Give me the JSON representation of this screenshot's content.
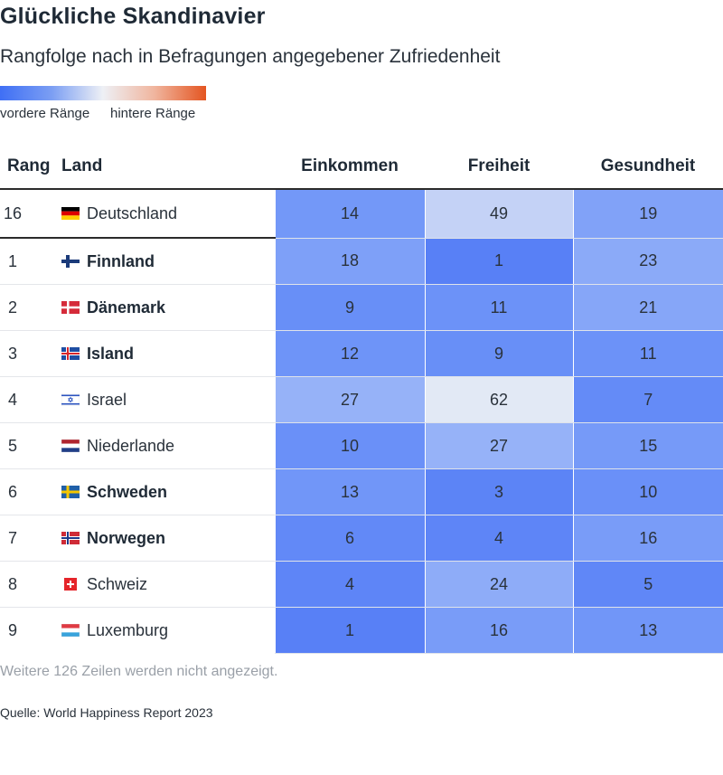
{
  "title": "Glückliche Skandinavier",
  "subtitle": "Rangfolge nach in Befragungen angegebener Zufriedenheit",
  "legend": {
    "low": "vordere Ränge",
    "high": "hintere Ränge",
    "colors": [
      "#3f6ff5",
      "#7b9ef3",
      "#eef0f5",
      "#f0b59e",
      "#e45521"
    ]
  },
  "note": "Weitere 126 Zeilen werden nicht angezeigt.",
  "source": "Quelle: World Happiness Report 2023",
  "chart_data": {
    "type": "table",
    "columns": [
      "Rang",
      "Land",
      "Einkommen",
      "Freiheit",
      "Gesundheit"
    ],
    "rows": [
      {
        "rank": "16",
        "country": "Deutschland",
        "flag": "de-flag",
        "bold": false,
        "values": [
          14,
          49,
          19
        ]
      },
      {
        "rank": "1",
        "country": "Finnland",
        "flag": "fi-flag",
        "bold": true,
        "values": [
          18,
          1,
          23
        ]
      },
      {
        "rank": "2",
        "country": "Dänemark",
        "flag": "dk-flag",
        "bold": true,
        "values": [
          9,
          11,
          21
        ]
      },
      {
        "rank": "3",
        "country": "Island",
        "flag": "is-flag",
        "bold": true,
        "values": [
          12,
          9,
          11
        ]
      },
      {
        "rank": "4",
        "country": "Israel",
        "flag": "il-flag",
        "bold": false,
        "values": [
          27,
          62,
          7
        ]
      },
      {
        "rank": "5",
        "country": "Niederlande",
        "flag": "nl-flag",
        "bold": false,
        "values": [
          10,
          27,
          15
        ]
      },
      {
        "rank": "6",
        "country": "Schweden",
        "flag": "se-flag",
        "bold": true,
        "values": [
          13,
          3,
          10
        ]
      },
      {
        "rank": "7",
        "country": "Norwegen",
        "flag": "no-flag",
        "bold": true,
        "values": [
          6,
          4,
          16
        ]
      },
      {
        "rank": "8",
        "country": "Schweiz",
        "flag": "ch-flag",
        "bold": false,
        "values": [
          4,
          24,
          5
        ]
      },
      {
        "rank": "9",
        "country": "Luxemburg",
        "flag": "lu-flag",
        "bold": false,
        "values": [
          1,
          16,
          13
        ]
      }
    ]
  }
}
